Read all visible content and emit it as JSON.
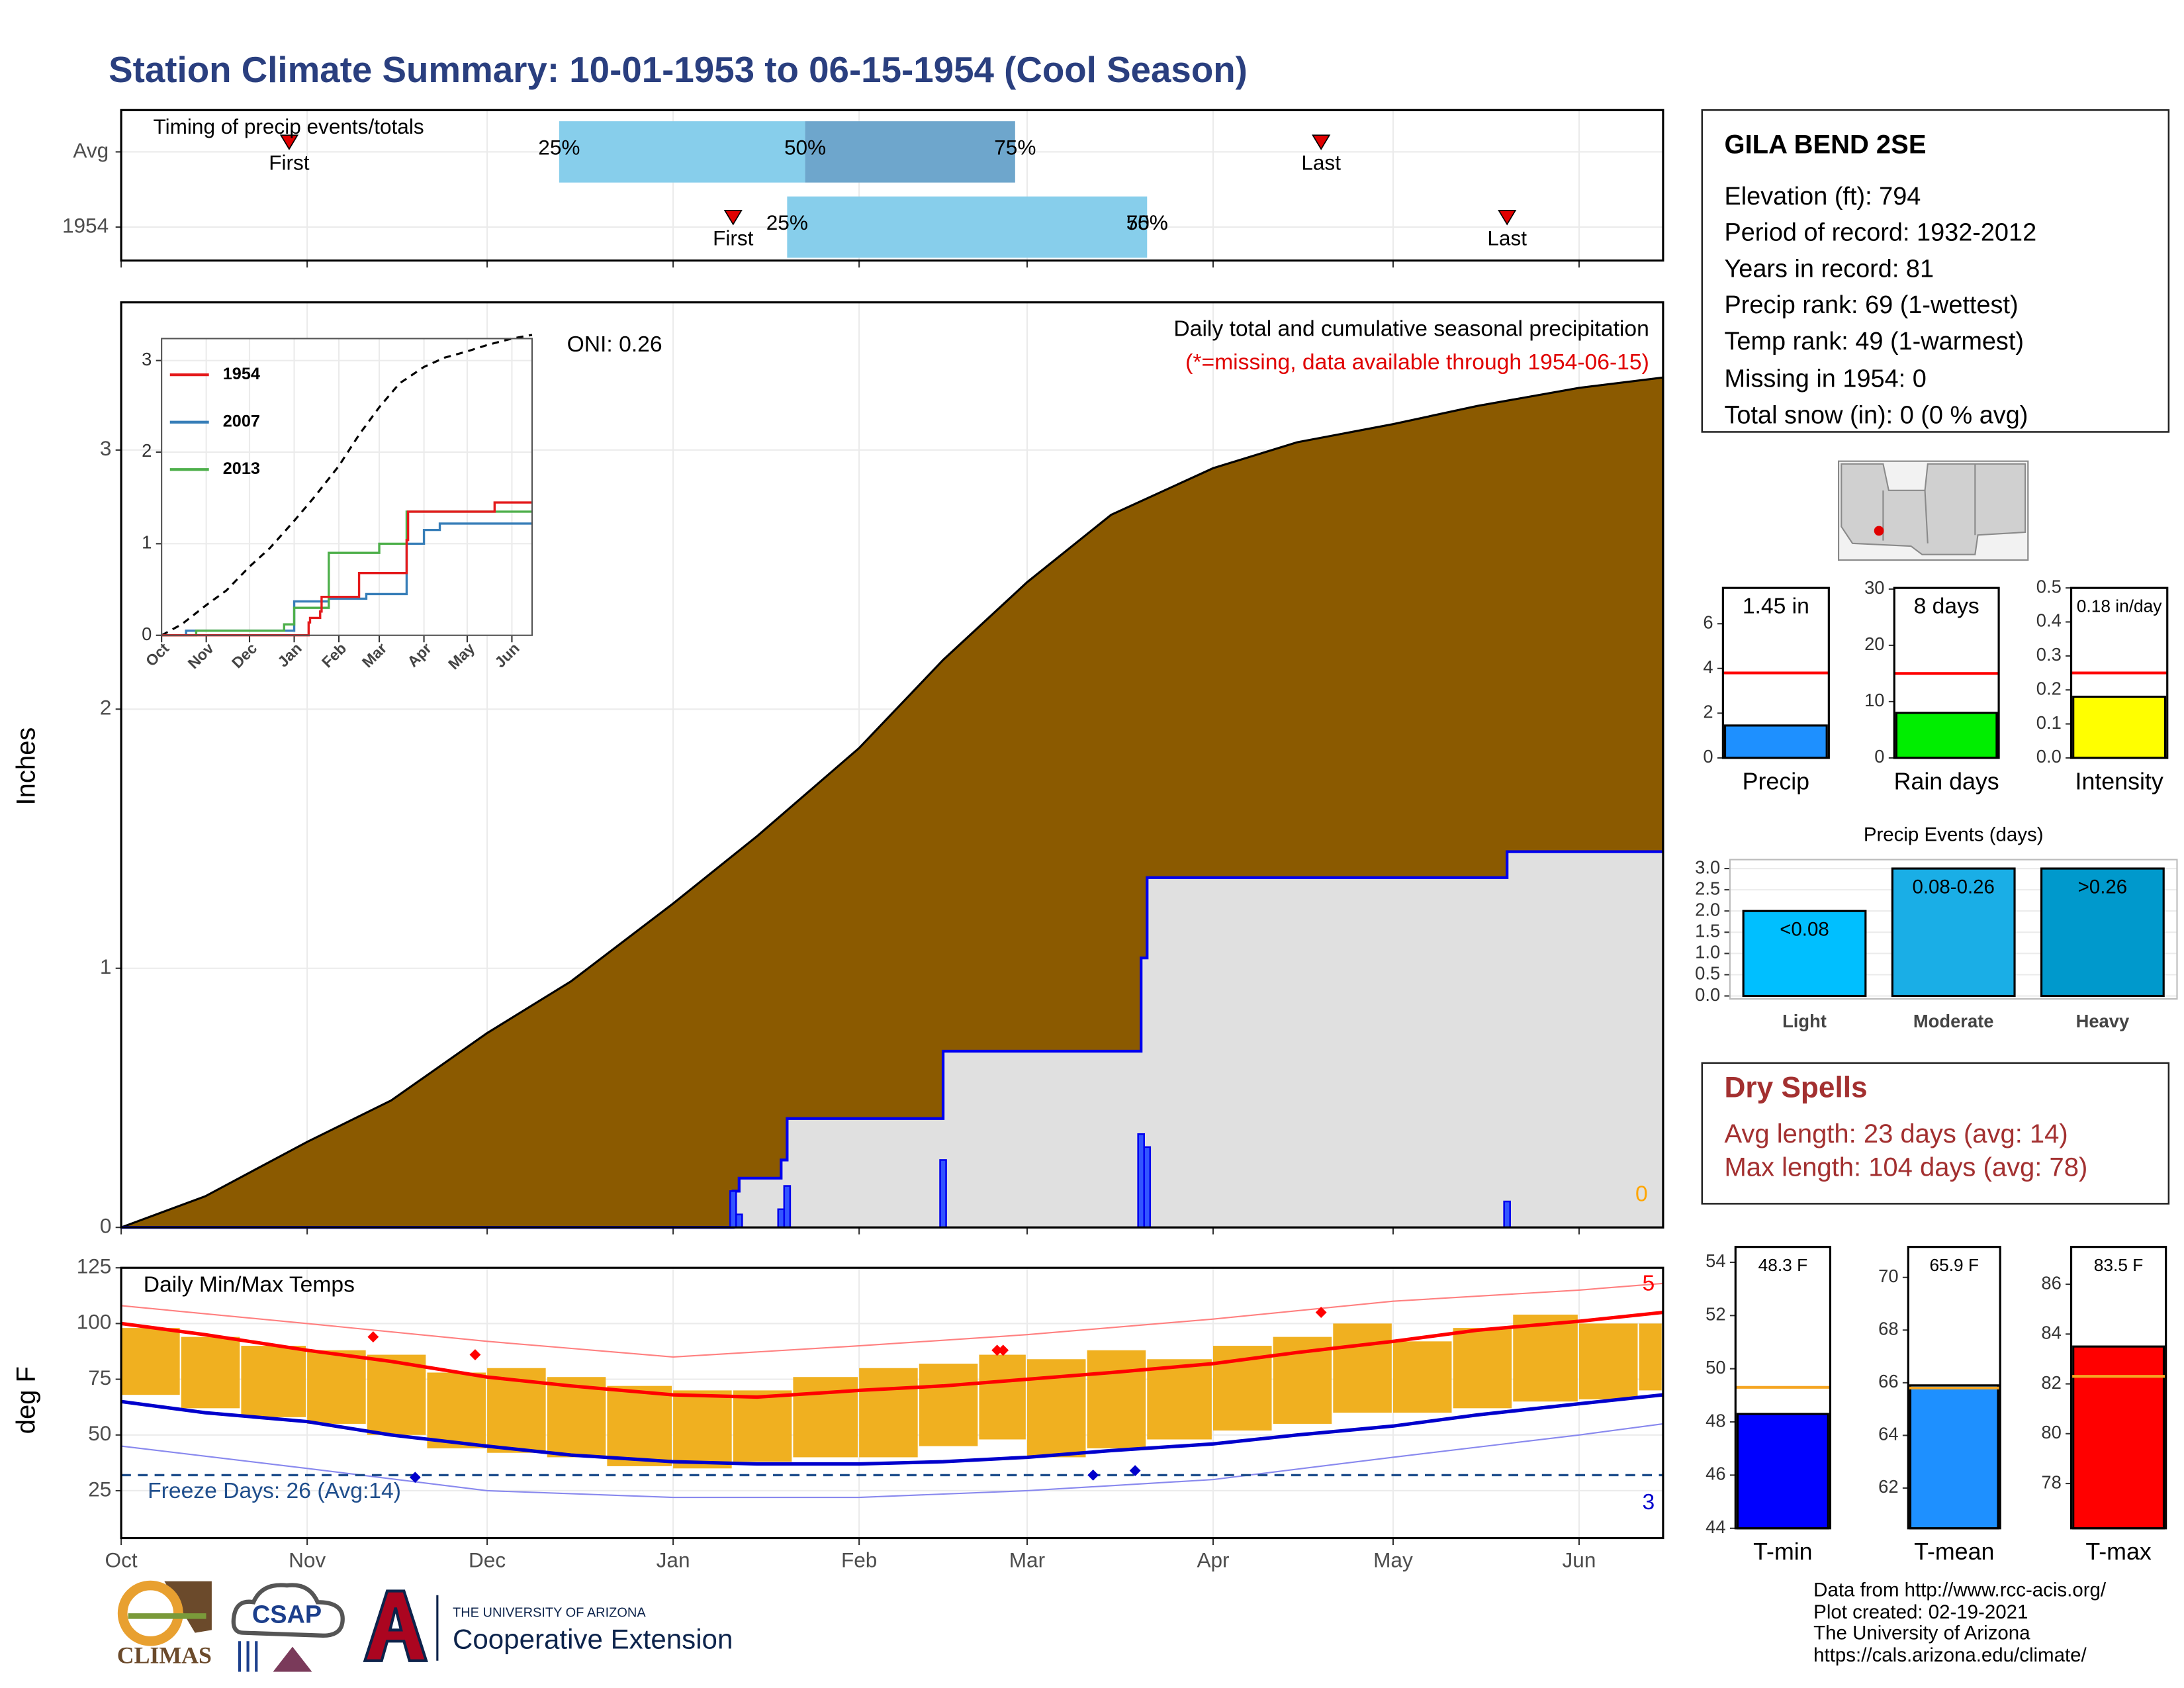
{
  "title": "Station Climate Summary: 10-01-1953 to 06-15-1954 (Cool Season)",
  "chart_data": [
    {
      "type": "timeline",
      "title": "Timing of precip events/totals",
      "categories": [
        "Avg",
        "1954"
      ],
      "first": [
        "1953-10-29",
        "1954-01-11"
      ],
      "p25": [
        "1953-12-13",
        "1954-01-20"
      ],
      "p50": [
        "1954-01-23",
        "1954-03-21"
      ],
      "p75": [
        "1954-02-27",
        "1954-03-21"
      ],
      "last": [
        "1954-04-19",
        "1954-05-20"
      ],
      "marker_labels": {
        "first": "First",
        "last": "Last"
      },
      "quantile_labels": [
        "25%",
        "50%",
        "75%"
      ],
      "colors": {
        "early": "#87ceeb",
        "late": "#6ea6cc",
        "marker": "#e00000"
      },
      "xlim": [
        "1953-10-01",
        "1954-06-15"
      ],
      "xticks": [
        {
          "value": "1953-10-01",
          "label": "Oct"
        },
        {
          "value": "1953-11-01",
          "label": "Nov"
        },
        {
          "value": "1953-12-01",
          "label": "Dec"
        },
        {
          "value": "1954-01-01",
          "label": "Jan"
        },
        {
          "value": "1954-02-01",
          "label": "Feb"
        },
        {
          "value": "1954-03-01",
          "label": "Mar"
        },
        {
          "value": "1954-04-01",
          "label": "Apr"
        },
        {
          "value": "1954-05-01",
          "label": "May"
        },
        {
          "value": "1954-06-01",
          "label": "Jun"
        }
      ],
      "grid": true
    },
    {
      "type": "precip",
      "title": "Daily total and cumulative seasonal precipitation",
      "subtitle": "(*=missing, data available through 1954-06-15)",
      "annotation": "ONI: 0.26",
      "ylabel": "Inches",
      "missing_count": 0,
      "missing_color": "#ffa500",
      "xlim": [
        "1953-10-01",
        "1954-06-15"
      ],
      "xticks": [
        {
          "value": "1953-10-01",
          "label": "Oct"
        },
        {
          "value": "1953-11-01",
          "label": "Nov"
        },
        {
          "value": "1953-12-01",
          "label": "Dec"
        },
        {
          "value": "1954-01-01",
          "label": "Jan"
        },
        {
          "value": "1954-02-01",
          "label": "Feb"
        },
        {
          "value": "1954-03-01",
          "label": "Mar"
        },
        {
          "value": "1954-04-01",
          "label": "Apr"
        },
        {
          "value": "1954-05-01",
          "label": "May"
        },
        {
          "value": "1954-06-01",
          "label": "Jun"
        }
      ],
      "ylim": [
        0,
        3.57
      ],
      "yticks": [
        0,
        1,
        2,
        3
      ],
      "grid": true,
      "series": [
        {
          "color": "#8b5a00",
          "x": [
            "1953-10-01",
            "1953-10-15",
            "1953-11-01",
            "1953-11-15",
            "1953-12-01",
            "1953-12-15",
            "1954-01-01",
            "1954-01-15",
            "1954-02-01",
            "1954-02-15",
            "1954-03-01",
            "1954-03-15",
            "1954-04-01",
            "1954-04-15",
            "1954-05-01",
            "1954-05-15",
            "1954-06-01",
            "1954-06-15"
          ],
          "values": [
            0,
            0.12,
            0.33,
            0.49,
            0.75,
            0.95,
            1.25,
            1.51,
            1.85,
            2.19,
            2.49,
            2.75,
            2.93,
            3.03,
            3.1,
            3.17,
            3.24,
            3.28
          ]
        },
        {
          "name": "1954",
          "color": "#0000ee",
          "x": [
            "1954-01-11",
            "1954-01-12",
            "1954-01-19",
            "1954-01-20",
            "1954-02-15",
            "1954-03-20",
            "1954-03-21",
            "1954-05-20"
          ],
          "values": [
            0.14,
            0.05,
            0.07,
            0.16,
            0.26,
            0.36,
            0.31,
            0.1
          ]
        }
      ]
    },
    {
      "type": "line",
      "highlight_color": "#e41a1c",
      "xlim": [
        "1953-10-01",
        "1954-06-15"
      ],
      "xticks": [
        {
          "value": "1953-10-01",
          "label": "Oct"
        },
        {
          "value": "1953-11-01",
          "label": "Nov"
        },
        {
          "value": "1953-12-01",
          "label": "Dec"
        },
        {
          "value": "1954-01-01",
          "label": "Jan"
        },
        {
          "value": "1954-02-01",
          "label": "Feb"
        },
        {
          "value": "1954-03-01",
          "label": "Mar"
        },
        {
          "value": "1954-04-01",
          "label": "Apr"
        },
        {
          "value": "1954-05-01",
          "label": "May"
        },
        {
          "value": "1954-06-01",
          "label": "Jun"
        }
      ],
      "ylim": [
        0,
        3.24
      ],
      "yticks": [
        0,
        1,
        2,
        3
      ],
      "grid": true,
      "series": [
        {
          "name": "2007",
          "color": "#377eb8",
          "x": [
            "1953-10-01",
            "1953-10-18",
            "1954-01-01",
            "1954-01-25",
            "1954-02-20",
            "1954-03-20",
            "1954-04-01",
            "1954-04-12",
            "1954-06-15"
          ],
          "values": [
            0,
            0.05,
            0.37,
            0.4,
            0.45,
            1.0,
            1.15,
            1.22,
            1.22
          ]
        },
        {
          "name": "2013",
          "color": "#4daf4a",
          "x": [
            "1953-10-01",
            "1953-10-25",
            "1953-12-25",
            "1954-01-01",
            "1954-01-25",
            "1954-03-01",
            "1954-03-20",
            "1954-06-15"
          ],
          "values": [
            0,
            0.05,
            0.12,
            0.3,
            0.9,
            1.0,
            1.35,
            1.35
          ]
        }
      ]
    },
    {
      "type": "temp",
      "title": "Daily Min/Max Temps",
      "ylabel": "deg F",
      "annotation": "Freeze Days: 26 (Avg:14)",
      "freeze": 32,
      "freeze_color": "#1f4e8c",
      "xlim": [
        "1953-10-01",
        "1954-06-15"
      ],
      "xticks": [
        {
          "value": "1953-10-01",
          "label": "Oct"
        },
        {
          "value": "1953-11-01",
          "label": "Nov"
        },
        {
          "value": "1953-12-01",
          "label": "Dec"
        },
        {
          "value": "1954-01-01",
          "label": "Jan"
        },
        {
          "value": "1954-02-01",
          "label": "Feb"
        },
        {
          "value": "1954-03-01",
          "label": "Mar"
        },
        {
          "value": "1954-04-01",
          "label": "Apr"
        },
        {
          "value": "1954-05-01",
          "label": "May"
        },
        {
          "value": "1954-06-01",
          "label": "Jun"
        }
      ],
      "ylim": [
        3.75,
        125
      ],
      "yticks": [
        25,
        50,
        75,
        100,
        125
      ],
      "grid": true,
      "daily": {
        "color": "#f0b020",
        "x": [
          "1953-10-01",
          "1953-10-11",
          "1953-10-21",
          "1953-11-01",
          "1953-11-11",
          "1953-11-21",
          "1953-12-01",
          "1953-12-11",
          "1953-12-21",
          "1954-01-01",
          "1954-01-11",
          "1954-01-21",
          "1954-02-01",
          "1954-02-11",
          "1954-02-21",
          "1954-03-01",
          "1954-03-11",
          "1954-03-21",
          "1954-04-01",
          "1954-04-11",
          "1954-04-21",
          "1954-05-01",
          "1954-05-11",
          "1954-05-21",
          "1954-06-01",
          "1954-06-11"
        ],
        "max": [
          98,
          94,
          90,
          88,
          86,
          78,
          80,
          76,
          72,
          70,
          70,
          76,
          80,
          82,
          86,
          84,
          88,
          84,
          90,
          94,
          100,
          92,
          98,
          104,
          100,
          100
        ],
        "min": [
          68,
          62,
          58,
          55,
          50,
          44,
          42,
          40,
          36,
          35,
          38,
          40,
          40,
          45,
          48,
          40,
          44,
          48,
          52,
          55,
          60,
          60,
          62,
          65,
          66,
          70
        ]
      },
      "series": [
        {
          "color": "#ff0000",
          "width": 2.5,
          "x": [
            "1953-10-01",
            "1953-10-15",
            "1953-11-01",
            "1953-11-15",
            "1953-12-01",
            "1953-12-15",
            "1954-01-01",
            "1954-01-15",
            "1954-02-01",
            "1954-02-15",
            "1954-03-01",
            "1954-03-15",
            "1954-04-01",
            "1954-04-15",
            "1954-05-01",
            "1954-05-15",
            "1954-06-01",
            "1954-06-15"
          ],
          "values": [
            100,
            95,
            88,
            83,
            76,
            72,
            68,
            67,
            70,
            72,
            75,
            78,
            82,
            87,
            92,
            97,
            101,
            105
          ]
        },
        {
          "color": "#0000cc",
          "width": 2.5,
          "x": [
            "1953-10-01",
            "1953-10-15",
            "1953-11-01",
            "1953-11-15",
            "1953-12-01",
            "1953-12-15",
            "1954-01-01",
            "1954-01-15",
            "1954-02-01",
            "1954-02-15",
            "1954-03-01",
            "1954-03-15",
            "1954-04-01",
            "1954-04-15",
            "1954-05-01",
            "1954-05-15",
            "1954-06-01",
            "1954-06-15"
          ],
          "values": [
            65,
            60,
            56,
            50,
            45,
            41,
            38,
            37,
            37,
            38,
            40,
            43,
            46,
            50,
            54,
            59,
            64,
            68
          ]
        },
        {
          "color": "#ff8080",
          "width": 1,
          "x": [
            "1953-10-01",
            "1953-11-01",
            "1953-12-01",
            "1954-01-01",
            "1954-02-01",
            "1954-03-01",
            "1954-04-01",
            "1954-05-01",
            "1954-06-01",
            "1954-06-15"
          ],
          "values": [
            108,
            100,
            92,
            85,
            90,
            95,
            102,
            110,
            115,
            118
          ]
        },
        {
          "color": "#8888ee",
          "width": 1,
          "x": [
            "1953-10-01",
            "1953-11-01",
            "1953-12-01",
            "1954-01-01",
            "1954-02-01",
            "1954-03-01",
            "1954-04-01",
            "1954-05-01",
            "1954-06-01",
            "1954-06-15"
          ],
          "values": [
            45,
            35,
            25,
            22,
            22,
            25,
            30,
            40,
            50,
            55
          ]
        }
      ],
      "record_highs": {
        "color": "#ff0000",
        "count": 5,
        "x": [
          "1953-11-12",
          "1953-11-29",
          "1954-02-24",
          "1954-02-25",
          "1954-04-19"
        ],
        "values": [
          94,
          86,
          88,
          88,
          105
        ]
      },
      "record_lows": {
        "color": "#0000cc",
        "count": 3,
        "x": [
          "1953-11-19",
          "1954-03-12",
          "1954-03-19"
        ],
        "values": [
          31,
          32,
          34
        ]
      }
    },
    {
      "type": "summary-bar",
      "categories": [
        "Precip"
      ],
      "values": [
        1.45
      ],
      "value_labels": [
        "1.45 in"
      ],
      "average": 3.8,
      "avg_color": "#ff0000",
      "color": "#1e90ff",
      "ylim": [
        0,
        7.6
      ],
      "yticks": [
        0,
        2,
        4,
        6
      ]
    },
    {
      "type": "summary-bar",
      "categories": [
        "Rain days"
      ],
      "values": [
        8
      ],
      "value_labels": [
        "8 days"
      ],
      "average": 15,
      "avg_color": "#ff0000",
      "color": "#00ee00",
      "ylim": [
        0,
        30.2
      ],
      "yticks": [
        0,
        10,
        20,
        30
      ]
    },
    {
      "type": "summary-bar",
      "categories": [
        "Intensity"
      ],
      "values": [
        0.18
      ],
      "value_labels": [
        "0.18 in/day"
      ],
      "average": 0.25,
      "avg_color": "#ff0000",
      "color": "#ffff00",
      "ylim": [
        0,
        0.5
      ],
      "yticks": [
        {
          "value": 0,
          "label": "0.0"
        },
        0.1,
        0.2,
        0.3,
        0.4,
        0.5
      ]
    },
    {
      "type": "bar",
      "title": "Precip Events (days)",
      "categories": [
        "Light",
        "Moderate",
        "Heavy"
      ],
      "values": [
        2,
        3,
        3
      ],
      "bar_text": [
        "<0.08",
        "0.08-0.26",
        ">0.26"
      ],
      "colors": [
        "#00bfff",
        "#1aaee6",
        "#0099cc"
      ],
      "ylim": [
        -0.07,
        3.21
      ],
      "yticks": [
        {
          "value": 0,
          "label": "0.0"
        },
        0.5,
        {
          "value": 1,
          "label": "1.0"
        },
        1.5,
        {
          "value": 2,
          "label": "2.0"
        },
        2.5,
        {
          "value": 3,
          "label": "3.0"
        }
      ],
      "grid": true
    },
    {
      "type": "summary-bar",
      "categories": [
        "T-min"
      ],
      "values": [
        48.3
      ],
      "value_labels": [
        "48.3 F"
      ],
      "average": 49.3,
      "avg_color": "#f5a623",
      "color": "#0000ff",
      "ylim": [
        44,
        54.58
      ],
      "yticks": [
        44,
        46,
        48,
        50,
        52,
        54
      ]
    },
    {
      "type": "summary-bar",
      "categories": [
        "T-mean"
      ],
      "values": [
        65.9
      ],
      "value_labels": [
        "65.9 F"
      ],
      "average": 65.8,
      "avg_color": "#f5a623",
      "color": "#1e90ff",
      "ylim": [
        60.47,
        71.16
      ],
      "yticks": [
        62,
        64,
        66,
        68,
        70
      ]
    },
    {
      "type": "summary-bar",
      "categories": [
        "T-max"
      ],
      "values": [
        83.5
      ],
      "value_labels": [
        "83.5 F"
      ],
      "average": 82.3,
      "avg_color": "#f5a623",
      "color": "#ff0000",
      "ylim": [
        76.2,
        87.5
      ],
      "yticks": [
        78,
        80,
        82,
        84,
        86
      ]
    }
  ],
  "station": {
    "name": "GILA BEND 2SE",
    "lines": [
      "Elevation (ft): 794",
      "Period of record: 1932-2012",
      "Years in record: 81",
      "Precip rank: 69 (1-wettest)",
      "Temp rank: 49 (1-warmest)",
      "Missing in 1954: 0",
      "Total snow (in): 0 (0 % avg)"
    ]
  },
  "dry_spells": {
    "title": "Dry Spells",
    "lines": [
      "Avg length: 23 days (avg: 14)",
      "Max length: 104 days (avg: 78)"
    ]
  },
  "credits": [
    "Data from http://www.rcc-acis.org/",
    "Plot created: 02-19-2021",
    "The University of Arizona",
    "https://cals.arizona.edu/climate/"
  ],
  "logos": {
    "climas": "CLIMAS",
    "csap": "CSAP",
    "ua": "THE UNIVERSITY OF ARIZONA",
    "coop": "Cooperative Extension"
  }
}
